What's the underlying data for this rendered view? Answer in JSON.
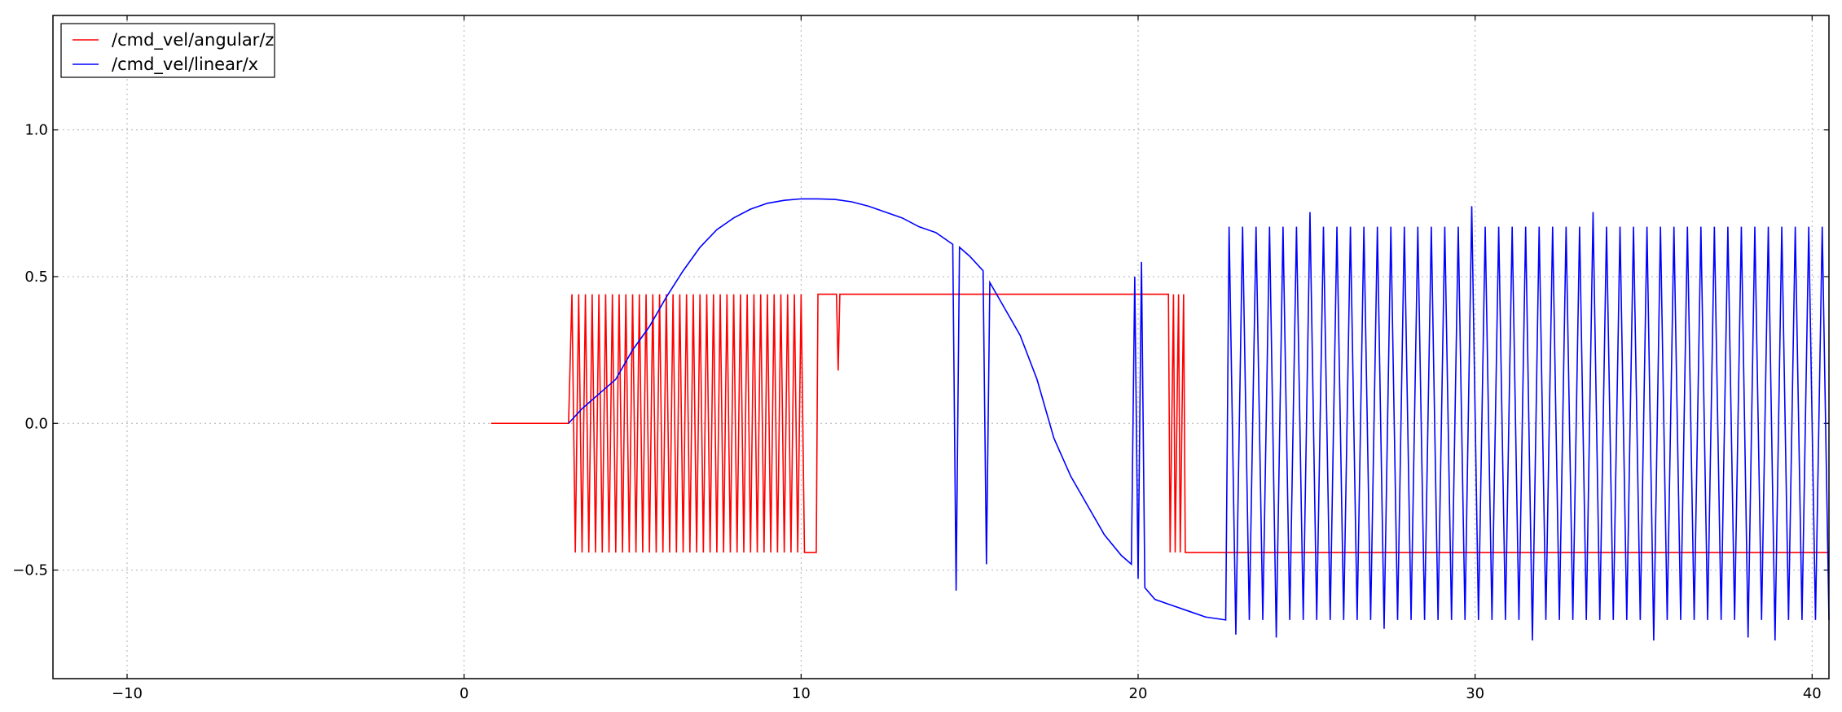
{
  "chart_data": {
    "type": "line",
    "xlim": [
      -12.2,
      40.5
    ],
    "ylim": [
      -0.87,
      1.39
    ],
    "xticks": [
      {
        "value": -10,
        "label": "−10"
      },
      0,
      10,
      20,
      30,
      40
    ],
    "yticks": [
      {
        "value": -0.5,
        "label": "−0.5"
      },
      {
        "value": 0,
        "label": "0.0"
      },
      {
        "value": 0.5,
        "label": "0.5"
      },
      {
        "value": 1,
        "label": "1.0"
      }
    ],
    "grid": true,
    "legend": "upper left",
    "series": [
      {
        "name": "/cmd_vel/angular/z",
        "color": "#ff0000",
        "x": [
          0.8,
          3.1,
          3.2,
          3.3,
          3.4,
          3.5,
          3.6,
          3.7,
          3.8,
          3.9,
          4.0,
          4.1,
          4.2,
          4.3,
          4.4,
          4.5,
          4.6,
          4.7,
          4.8,
          4.9,
          5.0,
          5.1,
          5.2,
          5.3,
          5.4,
          5.5,
          5.6,
          5.7,
          5.8,
          5.9,
          6.0,
          6.1,
          6.2,
          6.3,
          6.4,
          6.5,
          6.6,
          6.7,
          6.8,
          6.9,
          7.0,
          7.1,
          7.2,
          7.3,
          7.4,
          7.5,
          7.6,
          7.7,
          7.8,
          7.9,
          8.0,
          8.1,
          8.2,
          8.3,
          8.4,
          8.5,
          8.6,
          8.7,
          8.8,
          8.9,
          9.0,
          9.1,
          9.2,
          9.3,
          9.4,
          9.5,
          9.6,
          9.7,
          9.8,
          9.9,
          10.0,
          10.1,
          10.45,
          10.5,
          11.05,
          11.1,
          11.15,
          20.9,
          20.95,
          21.05,
          21.1,
          21.2,
          21.25,
          21.35,
          21.4,
          40.5
        ],
        "values": [
          0,
          0,
          0.44,
          -0.44,
          0.44,
          -0.44,
          0.44,
          -0.44,
          0.44,
          -0.44,
          0.44,
          -0.44,
          0.44,
          -0.44,
          0.44,
          -0.44,
          0.44,
          -0.44,
          0.44,
          -0.44,
          0.44,
          -0.44,
          0.44,
          -0.44,
          0.44,
          -0.44,
          0.44,
          -0.44,
          0.44,
          -0.44,
          0.44,
          -0.44,
          0.44,
          -0.44,
          0.44,
          -0.44,
          0.44,
          -0.44,
          0.44,
          -0.44,
          0.44,
          -0.44,
          0.44,
          -0.44,
          0.44,
          -0.44,
          0.44,
          -0.44,
          0.44,
          -0.44,
          0.44,
          -0.44,
          0.44,
          -0.44,
          0.44,
          -0.44,
          0.44,
          -0.44,
          0.44,
          -0.44,
          0.44,
          -0.44,
          0.44,
          -0.44,
          0.44,
          -0.44,
          0.44,
          -0.44,
          0.44,
          -0.44,
          0.44,
          -0.44,
          -0.44,
          0.44,
          0.44,
          0.18,
          0.44,
          0.44,
          -0.44,
          0.44,
          -0.44,
          0.44,
          -0.44,
          0.44,
          -0.44,
          -0.44
        ]
      },
      {
        "name": "/cmd_vel/linear/x",
        "color": "#0000ff",
        "x": [
          3.1,
          3.5,
          4.0,
          4.5,
          5.0,
          5.5,
          6.0,
          6.5,
          7.0,
          7.5,
          8.0,
          8.5,
          9.0,
          9.5,
          10.0,
          10.5,
          11.0,
          11.5,
          12.0,
          12.5,
          13.0,
          13.5,
          14.0,
          14.5,
          14.6,
          14.7,
          15.0,
          15.4,
          15.5,
          15.6,
          16.0,
          16.5,
          17.0,
          17.5,
          18.0,
          18.5,
          19.0,
          19.5,
          19.8,
          19.9,
          20.0,
          20.1,
          20.2,
          20.5,
          21.0,
          21.5,
          22.0,
          22.6,
          22.7,
          22.9,
          23.1,
          23.3,
          23.5,
          23.7,
          23.9,
          24.1,
          24.3,
          24.5,
          24.7,
          24.9,
          25.1,
          25.3,
          25.5,
          25.7,
          25.9,
          26.1,
          26.3,
          26.5,
          26.7,
          26.9,
          27.1,
          27.3,
          27.5,
          27.7,
          27.9,
          28.1,
          28.3,
          28.5,
          28.7,
          28.9,
          29.1,
          29.3,
          29.5,
          29.7,
          29.9,
          30.1,
          30.3,
          30.5,
          30.7,
          30.9,
          31.1,
          31.3,
          31.5,
          31.7,
          31.9,
          32.1,
          32.3,
          32.5,
          32.7,
          32.9,
          33.1,
          33.3,
          33.5,
          33.7,
          33.9,
          34.1,
          34.3,
          34.5,
          34.7,
          34.9,
          35.1,
          35.3,
          35.5,
          35.7,
          35.9,
          36.1,
          36.3,
          36.5,
          36.7,
          36.9,
          37.1,
          37.3,
          37.5,
          37.7,
          37.9,
          38.1,
          38.3,
          38.5,
          38.7,
          38.9,
          39.1,
          39.3,
          39.5,
          39.7,
          39.9,
          40.1,
          40.3,
          40.5
        ],
        "values": [
          0,
          0.05,
          0.1,
          0.15,
          0.25,
          0.33,
          0.43,
          0.52,
          0.6,
          0.66,
          0.7,
          0.73,
          0.75,
          0.76,
          0.765,
          0.765,
          0.763,
          0.755,
          0.74,
          0.72,
          0.7,
          0.67,
          0.65,
          0.61,
          -0.57,
          0.6,
          0.57,
          0.52,
          -0.48,
          0.48,
          0.4,
          0.3,
          0.15,
          -0.05,
          -0.18,
          -0.28,
          -0.38,
          -0.45,
          -0.48,
          0.5,
          -0.53,
          0.55,
          -0.56,
          -0.6,
          -0.62,
          -0.64,
          -0.66,
          -0.67,
          0.67,
          -0.72,
          0.67,
          -0.67,
          0.67,
          -0.67,
          0.67,
          -0.73,
          0.67,
          -0.67,
          0.67,
          -0.67,
          0.72,
          -0.67,
          0.67,
          -0.67,
          0.67,
          -0.67,
          0.67,
          -0.67,
          0.67,
          -0.67,
          0.67,
          -0.7,
          0.67,
          -0.67,
          0.67,
          -0.67,
          0.67,
          -0.67,
          0.67,
          -0.67,
          0.67,
          -0.67,
          0.67,
          -0.67,
          0.74,
          -0.67,
          0.67,
          -0.67,
          0.67,
          -0.67,
          0.67,
          -0.67,
          0.67,
          -0.74,
          0.67,
          -0.67,
          0.67,
          -0.67,
          0.67,
          -0.67,
          0.67,
          -0.67,
          0.72,
          -0.67,
          0.67,
          -0.67,
          0.67,
          -0.67,
          0.67,
          -0.67,
          0.67,
          -0.74,
          0.67,
          -0.67,
          0.67,
          -0.67,
          0.67,
          -0.67,
          0.67,
          -0.67,
          0.67,
          -0.67,
          0.67,
          -0.67,
          0.67,
          -0.73,
          0.67,
          -0.67,
          0.67,
          -0.74,
          0.67,
          -0.67,
          0.67,
          -0.67,
          0.67,
          -0.67,
          0.67,
          -0.67
        ]
      }
    ]
  }
}
